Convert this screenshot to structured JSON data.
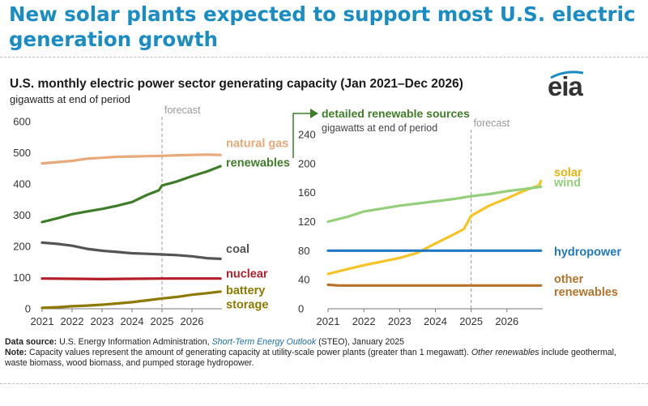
{
  "headline": "New solar plants expected to support most U.S. electric generation growth",
  "chart_title": "U.S. monthly electric power sector generating capacity (Jan 2021–Dec 2026)",
  "chart_subtitle": "gigawatts at end of period",
  "logo_text": "eia",
  "footer": {
    "source_label": "Data source:",
    "source_pre": "U.S. Energy Information Administration,",
    "source_link": "Short-Term Energy Outlook",
    "source_post": "(STEO), January 2025",
    "note_label": "Note:",
    "note_pre": "Capacity values represent the amount of generating capacity at utility-scale power plants (greater than 1 megawatt).",
    "note_italic": "Other renewables",
    "note_post": "include geothermal, waste biomass, wood biomass, and pumped storage hydropower."
  },
  "colors": {
    "headline": "#1a8cc4",
    "natural_gas": "#e9a97a",
    "renewables": "#3f7d28",
    "coal": "#555555",
    "nuclear": "#b41e28",
    "battery_storage": "#8c7a00",
    "solar": "#f7c325",
    "wind": "#94d07c",
    "hydropower": "#1f78c0",
    "other_renewables": "#b5732e"
  },
  "chart_data": [
    {
      "type": "line",
      "x_ticks": [
        "2021",
        "2022",
        "2023",
        "2024",
        "2025",
        "2026"
      ],
      "x_range": [
        2021.0,
        2027.0
      ],
      "ylim": [
        0,
        600
      ],
      "y_ticks": [
        "0",
        "100",
        "200",
        "300",
        "400",
        "500",
        "600"
      ],
      "forecast_label": "forecast",
      "forecast_start": 2025.0,
      "series": [
        {
          "name": "natural gas",
          "color": "#e9a97a",
          "points": [
            [
              2021.0,
              466
            ],
            [
              2021.5,
              470
            ],
            [
              2022.0,
              474
            ],
            [
              2022.5,
              481
            ],
            [
              2023.0,
              484
            ],
            [
              2023.5,
              487
            ],
            [
              2024.0,
              488
            ],
            [
              2024.5,
              489
            ],
            [
              2025.0,
              490
            ],
            [
              2025.5,
              492
            ],
            [
              2026.0,
              493
            ],
            [
              2026.5,
              494
            ],
            [
              2026.95,
              493
            ]
          ]
        },
        {
          "name": "renewables",
          "color": "#3f7d28",
          "points": [
            [
              2021.0,
              278
            ],
            [
              2021.5,
              290
            ],
            [
              2022.0,
              303
            ],
            [
              2022.5,
              312
            ],
            [
              2023.0,
              320
            ],
            [
              2023.5,
              330
            ],
            [
              2024.0,
              342
            ],
            [
              2024.5,
              365
            ],
            [
              2024.9,
              380
            ],
            [
              2025.0,
              395
            ],
            [
              2025.5,
              408
            ],
            [
              2026.0,
              425
            ],
            [
              2026.5,
              440
            ],
            [
              2026.95,
              457
            ]
          ]
        },
        {
          "name": "coal",
          "color": "#555555",
          "points": [
            [
              2021.0,
              212
            ],
            [
              2021.5,
              208
            ],
            [
              2022.0,
              202
            ],
            [
              2022.5,
              192
            ],
            [
              2023.0,
              186
            ],
            [
              2023.5,
              182
            ],
            [
              2024.0,
              178
            ],
            [
              2024.5,
              176
            ],
            [
              2025.0,
              174
            ],
            [
              2025.5,
              172
            ],
            [
              2026.0,
              168
            ],
            [
              2026.5,
              162
            ],
            [
              2026.95,
              160
            ]
          ]
        },
        {
          "name": "nuclear",
          "color": "#b41e28",
          "points": [
            [
              2021.0,
              97
            ],
            [
              2022.0,
              96
            ],
            [
              2023.0,
              95
            ],
            [
              2024.0,
              96
            ],
            [
              2025.0,
              97
            ],
            [
              2026.0,
              97
            ],
            [
              2026.95,
              97
            ]
          ]
        },
        {
          "name": "battery storage",
          "color": "#8c7a00",
          "points": [
            [
              2021.0,
              3
            ],
            [
              2021.5,
              5
            ],
            [
              2022.0,
              8
            ],
            [
              2022.5,
              10
            ],
            [
              2023.0,
              13
            ],
            [
              2023.5,
              17
            ],
            [
              2024.0,
              21
            ],
            [
              2024.5,
              27
            ],
            [
              2025.0,
              33
            ],
            [
              2025.5,
              38
            ],
            [
              2026.0,
              45
            ],
            [
              2026.5,
              50
            ],
            [
              2026.95,
              55
            ]
          ]
        }
      ],
      "series_labels": {
        "natural_gas": "natural gas",
        "renewables": "renewables",
        "coal": "coal",
        "nuclear": "nuclear",
        "battery_line1": "battery",
        "battery_line2": "storage"
      }
    },
    {
      "type": "line",
      "title": "detailed renewable sources",
      "subtitle": "gigawatts at end of period",
      "x_ticks": [
        "2021",
        "2022",
        "2023",
        "2024",
        "2025",
        "2026"
      ],
      "x_range": [
        2021.0,
        2027.0
      ],
      "ylim": [
        0,
        240
      ],
      "y_ticks": [
        "0",
        "40",
        "80",
        "120",
        "160",
        "200",
        "240"
      ],
      "forecast_label": "forecast",
      "forecast_start": 2025.0,
      "series": [
        {
          "name": "solar",
          "color": "#f7c325",
          "points": [
            [
              2021.0,
              48
            ],
            [
              2021.5,
              54
            ],
            [
              2022.0,
              60
            ],
            [
              2022.5,
              65
            ],
            [
              2023.0,
              70
            ],
            [
              2023.5,
              77
            ],
            [
              2024.0,
              90
            ],
            [
              2024.5,
              102
            ],
            [
              2024.8,
              110
            ],
            [
              2025.0,
              128
            ],
            [
              2025.5,
              142
            ],
            [
              2026.0,
              152
            ],
            [
              2026.5,
              163
            ],
            [
              2026.9,
              170
            ],
            [
              2026.95,
              176
            ]
          ]
        },
        {
          "name": "wind",
          "color": "#94d07c",
          "points": [
            [
              2021.0,
              120
            ],
            [
              2021.5,
              126
            ],
            [
              2022.0,
              134
            ],
            [
              2022.5,
              138
            ],
            [
              2023.0,
              142
            ],
            [
              2023.5,
              145
            ],
            [
              2024.0,
              148
            ],
            [
              2024.5,
              151
            ],
            [
              2025.0,
              155
            ],
            [
              2025.5,
              158
            ],
            [
              2026.0,
              162
            ],
            [
              2026.5,
              165
            ],
            [
              2026.95,
              168
            ]
          ]
        },
        {
          "name": "hydropower",
          "color": "#1f78c0",
          "points": [
            [
              2021.0,
              80
            ],
            [
              2022.0,
              80
            ],
            [
              2023.0,
              80
            ],
            [
              2024.0,
              80
            ],
            [
              2025.0,
              80
            ],
            [
              2026.0,
              80
            ],
            [
              2026.95,
              80
            ]
          ]
        },
        {
          "name": "other renewables",
          "color": "#b5732e",
          "points": [
            [
              2021.0,
              33
            ],
            [
              2021.3,
              32
            ],
            [
              2022.0,
              32
            ],
            [
              2023.0,
              32
            ],
            [
              2024.0,
              32
            ],
            [
              2025.0,
              32
            ],
            [
              2026.0,
              32
            ],
            [
              2026.95,
              32
            ]
          ]
        }
      ],
      "series_labels": {
        "solar": "solar",
        "wind": "wind",
        "hydropower": "hydropower",
        "other_line1": "other",
        "other_line2": "renewables"
      }
    }
  ]
}
